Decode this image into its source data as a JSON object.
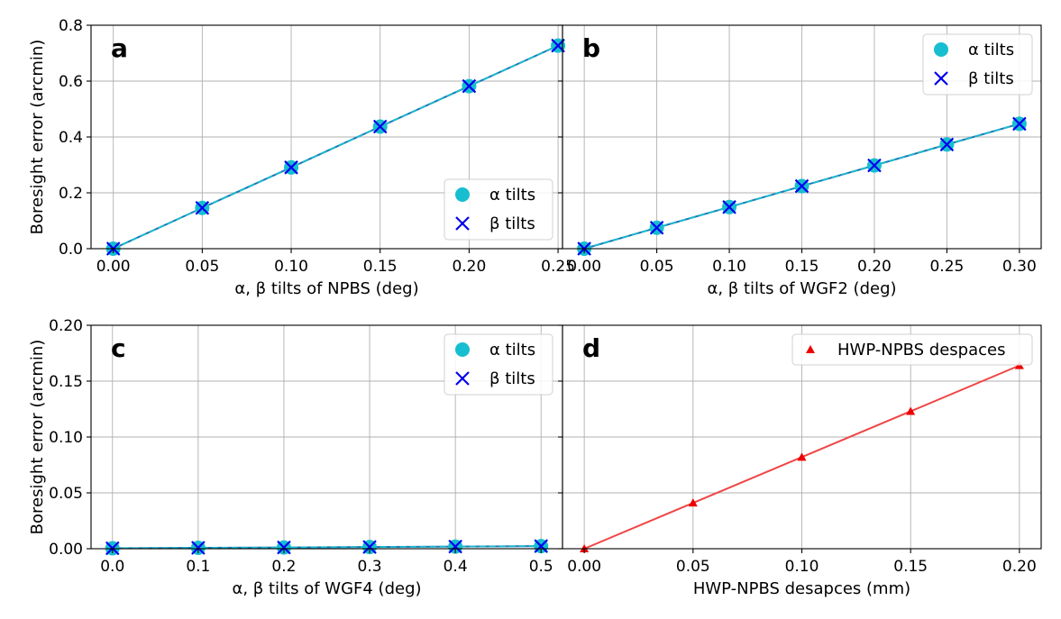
{
  "colors": {
    "alpha": "#17becf",
    "beta": "#0000ee",
    "alpha_line": "#1f77b4",
    "beta_line": "#17becf",
    "despace": "#ee0000",
    "despace_line": "#f04545",
    "grid": "#b0b0b0"
  },
  "chart_data": [
    {
      "id": "a",
      "panel_label": "a",
      "type": "line",
      "xlabel": "α, β tilts of NPBS (deg)",
      "ylabel": "Boresight error (arcmin)",
      "xlim": [
        -0.0125,
        0.2525
      ],
      "ylim": [
        0,
        0.8
      ],
      "xticks": [
        0,
        0.05,
        0.1,
        0.15,
        0.2,
        0.25
      ],
      "xtick_labels": [
        "0.00",
        "0.05",
        "0.10",
        "0.15",
        "0.20",
        "0.25"
      ],
      "yticks": [
        0,
        0.2,
        0.4,
        0.6,
        0.8
      ],
      "ytick_labels": [
        "0.0",
        "0.2",
        "0.4",
        "0.6",
        "0.8"
      ],
      "grid": true,
      "legend_position": "lower-right",
      "series": [
        {
          "name": "α tilts",
          "marker": "circle",
          "x": [
            0,
            0.05,
            0.1,
            0.15,
            0.2,
            0.25
          ],
          "values": [
            0,
            0.146,
            0.291,
            0.437,
            0.582,
            0.727
          ]
        },
        {
          "name": "β tilts",
          "marker": "x",
          "x": [
            0,
            0.05,
            0.1,
            0.15,
            0.2,
            0.25
          ],
          "values": [
            0,
            0.146,
            0.291,
            0.437,
            0.582,
            0.727
          ]
        }
      ]
    },
    {
      "id": "b",
      "panel_label": "b",
      "type": "line",
      "xlabel": "α, β tilts of WGF2 (deg)",
      "ylabel": "",
      "xlim": [
        -0.015,
        0.315
      ],
      "ylim": [
        0,
        0.8
      ],
      "xticks": [
        0,
        0.05,
        0.1,
        0.15,
        0.2,
        0.25,
        0.3
      ],
      "xtick_labels": [
        "0.00",
        "0.05",
        "0.10",
        "0.15",
        "0.20",
        "0.25",
        "0.30"
      ],
      "yticks": [
        0,
        0.2,
        0.4,
        0.6,
        0.8
      ],
      "ytick_labels": [],
      "grid": true,
      "legend_position": "upper-right",
      "series": [
        {
          "name": "α tilts",
          "marker": "circle",
          "x": [
            0,
            0.05,
            0.1,
            0.15,
            0.2,
            0.25,
            0.3
          ],
          "values": [
            0,
            0.075,
            0.149,
            0.224,
            0.298,
            0.373,
            0.447
          ]
        },
        {
          "name": "β tilts",
          "marker": "x",
          "x": [
            0,
            0.05,
            0.1,
            0.15,
            0.2,
            0.25,
            0.3
          ],
          "values": [
            0,
            0.075,
            0.149,
            0.224,
            0.298,
            0.373,
            0.447
          ]
        }
      ]
    },
    {
      "id": "c",
      "panel_label": "c",
      "type": "line",
      "xlabel": "α, β tilts of WGF4 (deg)",
      "ylabel": "Boresight error (arcmin)",
      "xlim": [
        -0.025,
        0.525
      ],
      "ylim": [
        0,
        0.2
      ],
      "xticks": [
        0,
        0.1,
        0.2,
        0.3,
        0.4,
        0.5
      ],
      "xtick_labels": [
        "0.0",
        "0.1",
        "0.2",
        "0.3",
        "0.4",
        "0.5"
      ],
      "yticks": [
        0,
        0.05,
        0.1,
        0.15,
        0.2
      ],
      "ytick_labels": [
        "0.00",
        "0.05",
        "0.10",
        "0.15",
        "0.20"
      ],
      "grid": true,
      "legend_position": "upper-right",
      "series": [
        {
          "name": "α tilts",
          "marker": "circle",
          "x": [
            0,
            0.1,
            0.2,
            0.3,
            0.4,
            0.5
          ],
          "values": [
            0.0004,
            0.0008,
            0.0011,
            0.0015,
            0.0019,
            0.0023
          ]
        },
        {
          "name": "β tilts",
          "marker": "x",
          "x": [
            0,
            0.1,
            0.2,
            0.3,
            0.4,
            0.5
          ],
          "values": [
            0.0004,
            0.0008,
            0.0011,
            0.0015,
            0.0019,
            0.0023
          ]
        }
      ]
    },
    {
      "id": "d",
      "panel_label": "d",
      "type": "line",
      "xlabel": "HWP-NPBS desapces (mm)",
      "ylabel": "",
      "xlim": [
        -0.01,
        0.21
      ],
      "ylim": [
        0,
        0.2
      ],
      "xticks": [
        0,
        0.05,
        0.1,
        0.15,
        0.2
      ],
      "xtick_labels": [
        "0.00",
        "0.05",
        "0.10",
        "0.15",
        "0.20"
      ],
      "yticks": [
        0,
        0.05,
        0.1,
        0.15,
        0.2
      ],
      "ytick_labels": [],
      "grid": true,
      "legend_position": "upper-right",
      "series": [
        {
          "name": "HWP-NPBS despaces",
          "marker": "triangle",
          "x": [
            0,
            0.05,
            0.1,
            0.15,
            0.2
          ],
          "values": [
            0,
            0.041,
            0.082,
            0.123,
            0.164
          ]
        }
      ]
    }
  ]
}
